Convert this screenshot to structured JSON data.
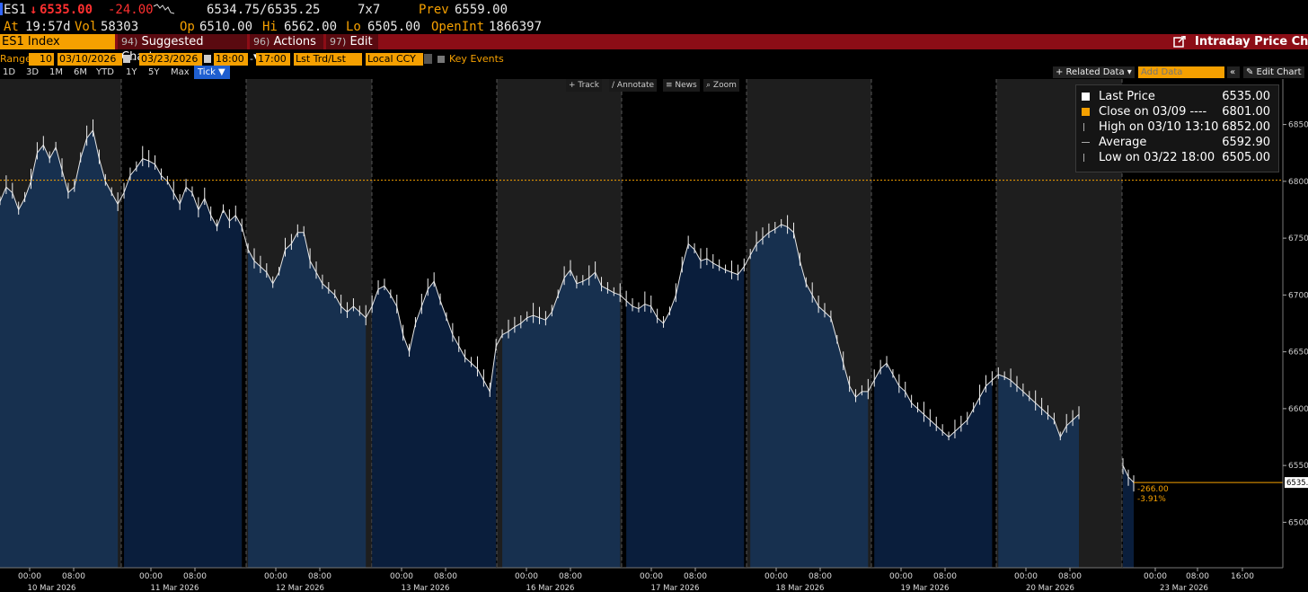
{
  "quote": {
    "ticker": "ES1",
    "arrow": "↓",
    "last": "6535.00",
    "change": "-24.00",
    "bid_ask": "6534.75/6535.25",
    "size": "7x7",
    "prev_label": "Prev",
    "prev": "6559.00",
    "at_label": "At",
    "time": "19:57d",
    "vol_label": "Vol",
    "vol": "58303",
    "op_label": "Op",
    "op": "6510.00",
    "hi_label": "Hi",
    "hi": "6562.00",
    "lo_label": "Lo",
    "lo": "6505.00",
    "oi_label": "OpenInt",
    "oi": "1866397"
  },
  "toolbar": {
    "security": "ES1 Index",
    "suggested_num": "94)",
    "suggested": "Suggested Charts ▾",
    "actions_num": "96)",
    "actions": "Actions ▾",
    "edit_num": "97)",
    "edit": "Edit ▾",
    "title": "Intraday Price Chart"
  },
  "settings": {
    "range_label": "Range",
    "range_days": "10",
    "start_date": "03/10/2026",
    "end_date": "03/23/2026",
    "start_time": "18:00",
    "end_time": "17:00",
    "price_type": "Lst Trd/Lst Px",
    "currency": "Local CCY",
    "key_events": "Key Events"
  },
  "periods": {
    "items": [
      "1D",
      "3D",
      "1M",
      "6M",
      "YTD",
      "1Y",
      "5Y",
      "Max"
    ],
    "tick": "Tick ▼",
    "related": "+ Related Data ▾",
    "add_data_placeholder": "Add Data",
    "edit_chart": "✎ Edit Chart"
  },
  "chart_tools": [
    "Track",
    "Annotate",
    "News",
    "Zoom"
  ],
  "legend": {
    "last_label": "Last Price",
    "last_value": "6535.00",
    "close_label": "Close on 03/09 ----",
    "close_value": "6801.00",
    "high_label": "High on 03/10 13:10",
    "high_value": "6852.00",
    "avg_label": "Average",
    "avg_value": "6592.90",
    "low_label": "Low on 03/22 18:00",
    "low_value": "6505.00"
  },
  "colors": {
    "accent": "#f5a000",
    "toolbar_red": "#8c0d16",
    "area_fill": "#17304f",
    "area_fill_dark": "#0a1e3c",
    "negative": "#ff3030"
  },
  "chart_data": {
    "type": "line",
    "yticks": [
      6500,
      6550,
      6600,
      6650,
      6700,
      6750,
      6800,
      6850
    ],
    "ylim": [
      6460,
      6890
    ],
    "ref_line": 6801,
    "last_marker": "6535.",
    "change_abs": "-266.00",
    "change_pct": "-3.91%",
    "days": [
      "10 Mar 2026",
      "11 Mar 2026",
      "12 Mar 2026",
      "13 Mar 2026",
      "16 Mar 2026",
      "17 Mar 2026",
      "18 Mar 2026",
      "19 Mar 2026",
      "20 Mar 2026",
      "23 Mar 2026"
    ],
    "hour_labels": [
      "00:00",
      "08:00",
      "16:00"
    ],
    "series": [
      {
        "values": [
          6782,
          6795,
          6790,
          6775,
          6785,
          6800,
          6825,
          6832,
          6820,
          6830,
          6810,
          6790,
          6795,
          6820,
          6838,
          6845,
          6820,
          6800,
          6790,
          6780,
          6790,
          6805,
          6812,
          6820,
          6818,
          6815,
          6805,
          6800,
          6790,
          6780,
          6795,
          6790,
          6775,
          6785,
          6770,
          6760,
          6775,
          6765,
          6770,
          6760,
          6740,
          6730,
          6725,
          6720,
          6710,
          6720,
          6740,
          6745,
          6755,
          6755,
          6730,
          6720,
          6710,
          6705,
          6700,
          6690,
          6685,
          6690,
          6685,
          6680,
          6690,
          6705,
          6708,
          6700,
          6690,
          6665,
          6650,
          6675,
          6690,
          6705,
          6712,
          6695,
          6680,
          6665,
          6655,
          6645,
          6640,
          6635,
          6625,
          6615,
          6655,
          6665,
          6668,
          6672,
          6675,
          6680,
          6682,
          6680,
          6678,
          6685,
          6700,
          6715,
          6722,
          6710,
          6712,
          6715,
          6720,
          6708,
          6705,
          6702,
          6700,
          6695,
          6690,
          6688,
          6692,
          6690,
          6680,
          6675,
          6685,
          6700,
          6725,
          6745,
          6740,
          6730,
          6732,
          6728,
          6725,
          6722,
          6720,
          6718,
          6725,
          6735,
          6745,
          6750,
          6755,
          6758,
          6762,
          6760,
          6755,
          6730,
          6710,
          6700,
          6690,
          6685,
          6680,
          6660,
          6640,
          6620,
          6610,
          6615,
          6615,
          6625,
          6635,
          6640,
          6630,
          6620,
          6615,
          6605,
          6600,
          6595,
          6590,
          6585,
          6580,
          6575,
          6580,
          6585,
          6590,
          6600,
          6610,
          6620,
          6625,
          6630,
          6628,
          6625,
          6620,
          6615,
          6610,
          6605,
          6600,
          6595,
          6590,
          6575,
          6585,
          6590,
          6595,
          6550,
          6540,
          6535
        ]
      }
    ]
  }
}
